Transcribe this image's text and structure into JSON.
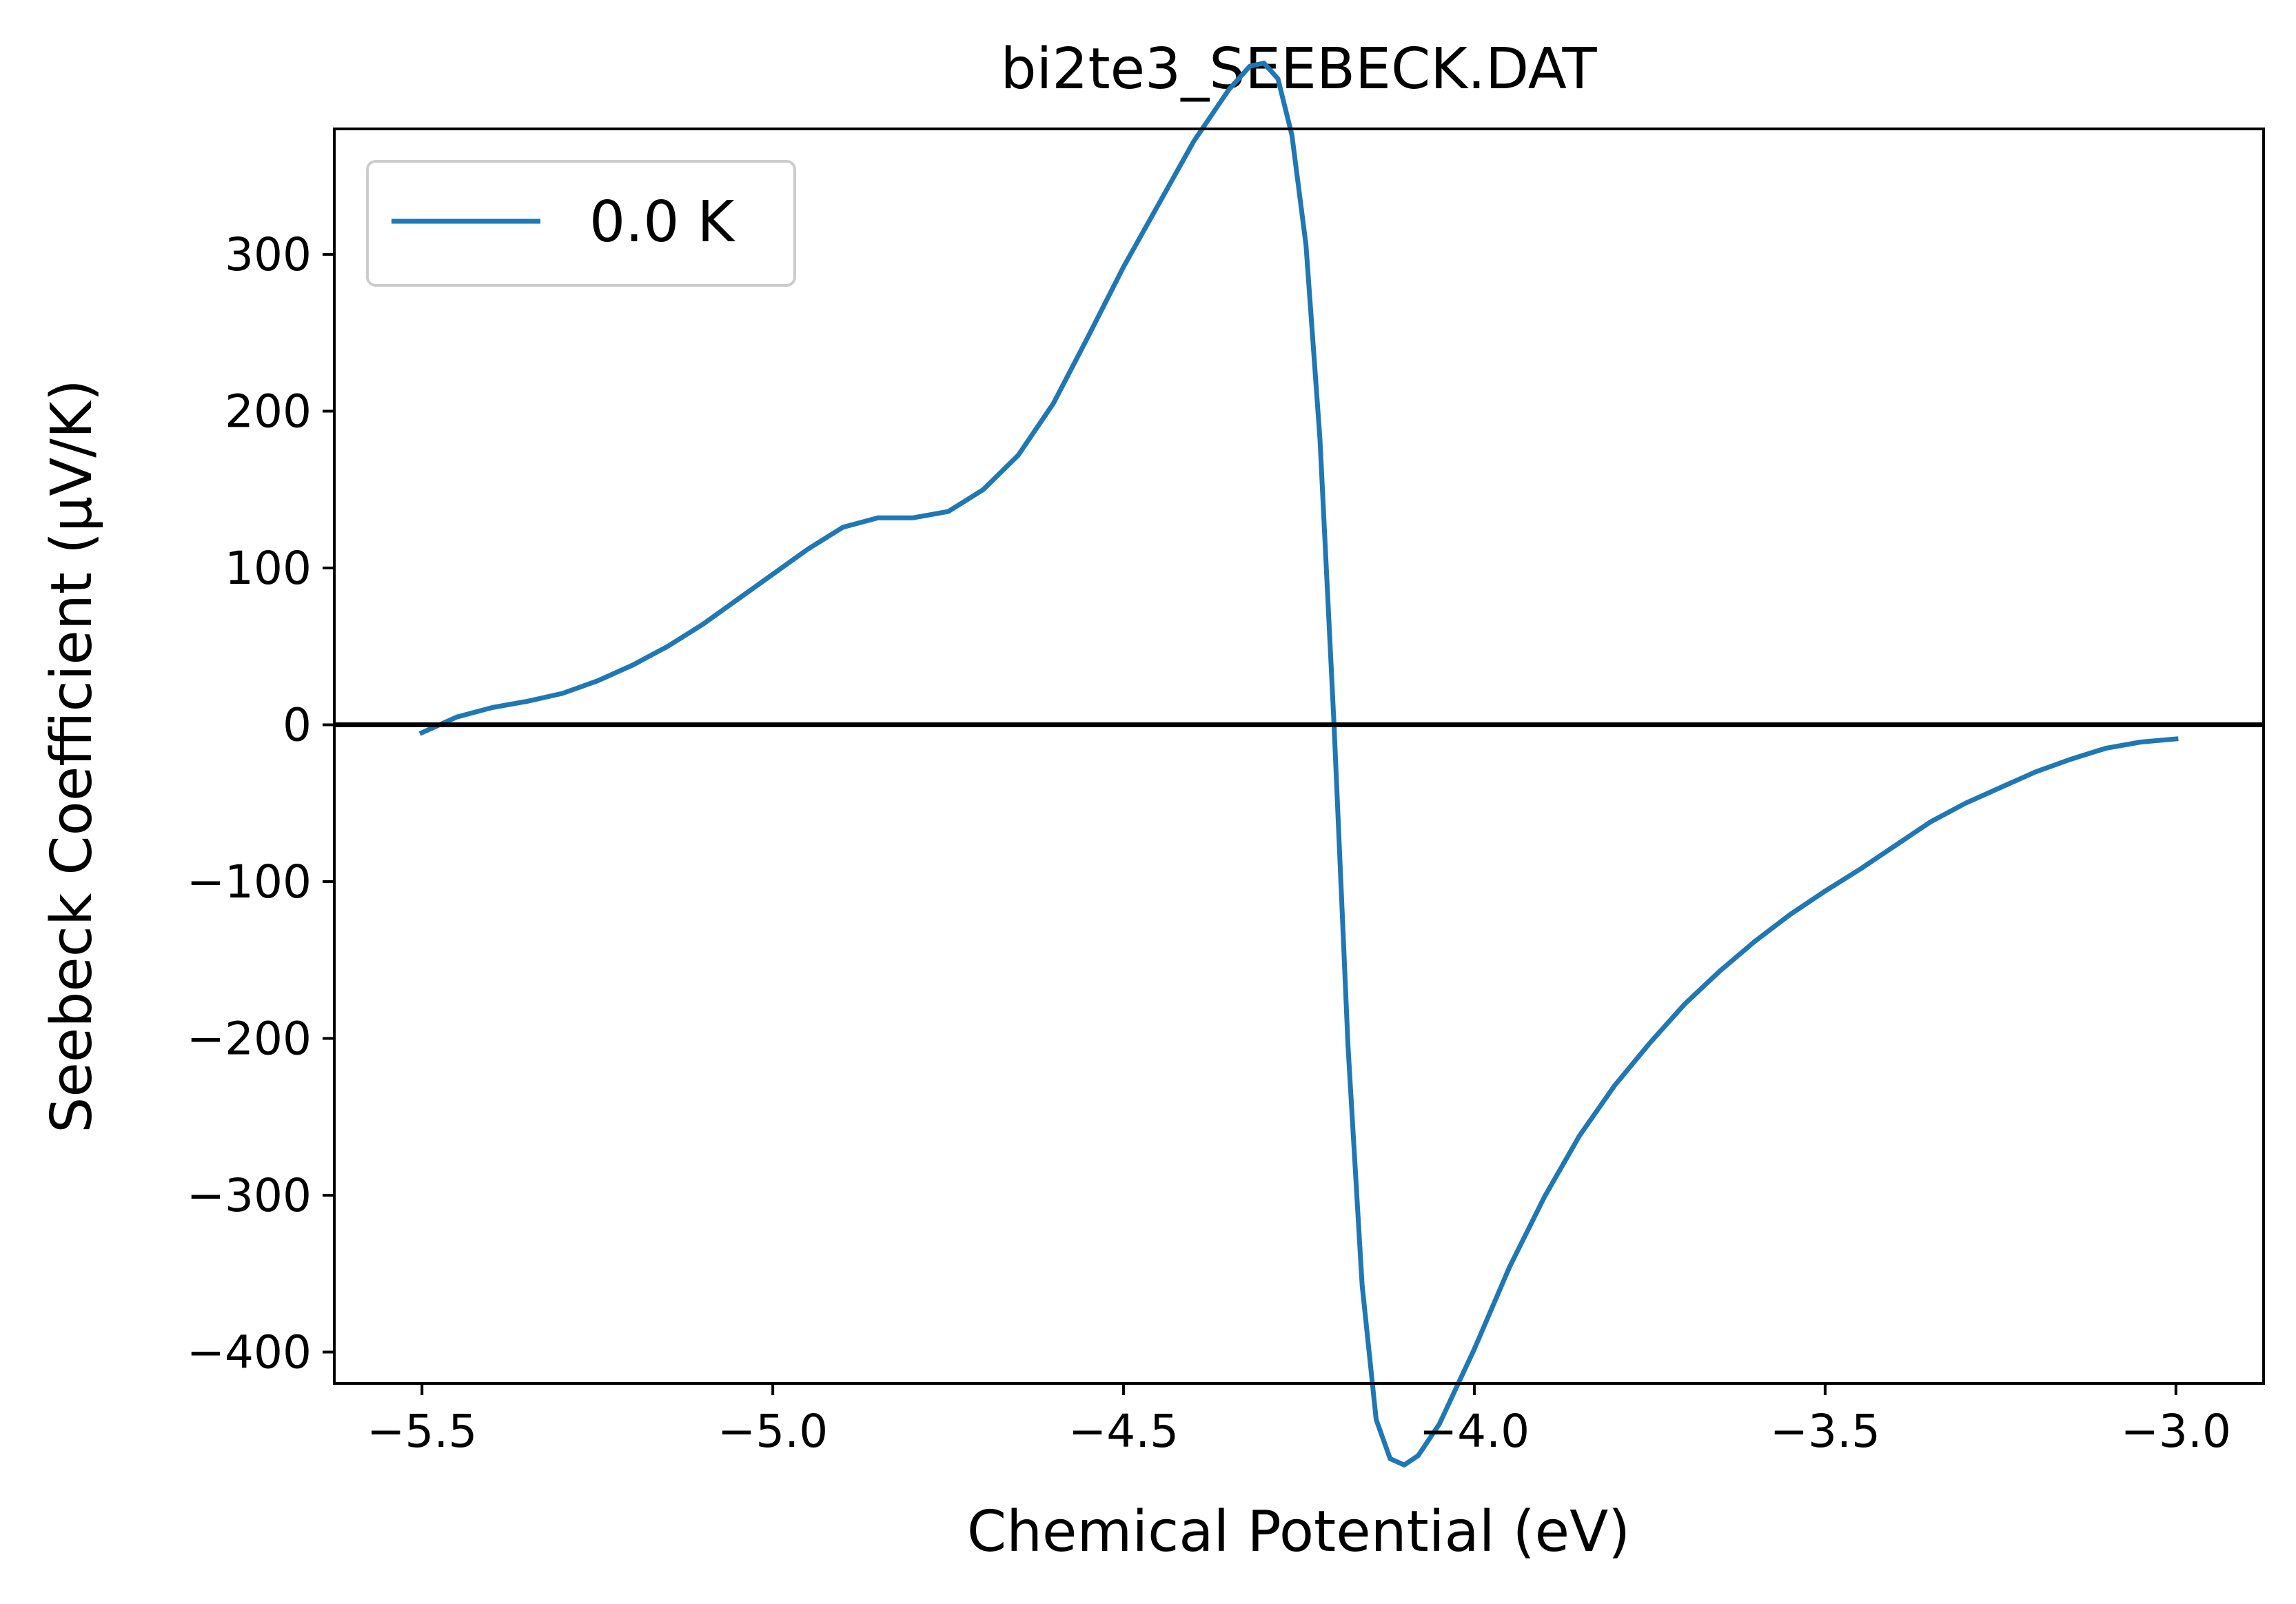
{
  "chart_data": {
    "type": "line",
    "title": "bi2te3_SEEBECK.DAT",
    "xlabel": "Chemical Potential (eV)",
    "ylabel": "Seebeck Coefficient (μV/K)",
    "xlim": [
      -5.625,
      -2.875
    ],
    "ylim": [
      -420,
      380
    ],
    "xticks": [
      -5.5,
      -5.0,
      -4.5,
      -4.0,
      -3.5,
      -3.0
    ],
    "xtick_labels": [
      "−5.5",
      "−5.0",
      "−4.5",
      "−4.0",
      "−3.5",
      "−3.0"
    ],
    "yticks": [
      300,
      200,
      100,
      0,
      -100,
      -200,
      -300,
      -400
    ],
    "ytick_labels": [
      "300",
      "200",
      "100",
      "0",
      "−100",
      "−200",
      "−300",
      "−400"
    ],
    "grid": false,
    "legend_position": "top-left",
    "zero_line": {
      "y": 0,
      "color": "#000000"
    },
    "series": [
      {
        "name": "0.0 K",
        "color": "#1f77b4",
        "x": [
          -5.5,
          -5.45,
          -5.4,
          -5.35,
          -5.3,
          -5.25,
          -5.2,
          -5.15,
          -5.1,
          -5.05,
          -5.0,
          -4.95,
          -4.9,
          -4.85,
          -4.8,
          -4.75,
          -4.7,
          -4.65,
          -4.6,
          -4.55,
          -4.5,
          -4.45,
          -4.4,
          -4.35,
          -4.32,
          -4.3,
          -4.28,
          -4.26,
          -4.24,
          -4.22,
          -4.2,
          -4.18,
          -4.16,
          -4.14,
          -4.12,
          -4.1,
          -4.08,
          -4.05,
          -4.0,
          -3.95,
          -3.9,
          -3.85,
          -3.8,
          -3.75,
          -3.7,
          -3.65,
          -3.6,
          -3.55,
          -3.5,
          -3.45,
          -3.4,
          -3.35,
          -3.3,
          -3.25,
          -3.2,
          -3.15,
          -3.1,
          -3.05,
          -3.0
        ],
        "y": [
          -5,
          5,
          11,
          15,
          20,
          28,
          38,
          50,
          64,
          80,
          96,
          112,
          126,
          132,
          132,
          136,
          150,
          172,
          205,
          248,
          292,
          332,
          372,
          405,
          420,
          422,
          412,
          376,
          306,
          182,
          0,
          -205,
          -357,
          -443,
          -468,
          -472,
          -466,
          -446,
          -398,
          -346,
          -301,
          -262,
          -230,
          -203,
          -178,
          -157,
          -138,
          -121,
          -106,
          -92,
          -77,
          -62,
          -50,
          -40,
          -30,
          -22,
          -15,
          -11,
          -9
        ]
      }
    ]
  }
}
